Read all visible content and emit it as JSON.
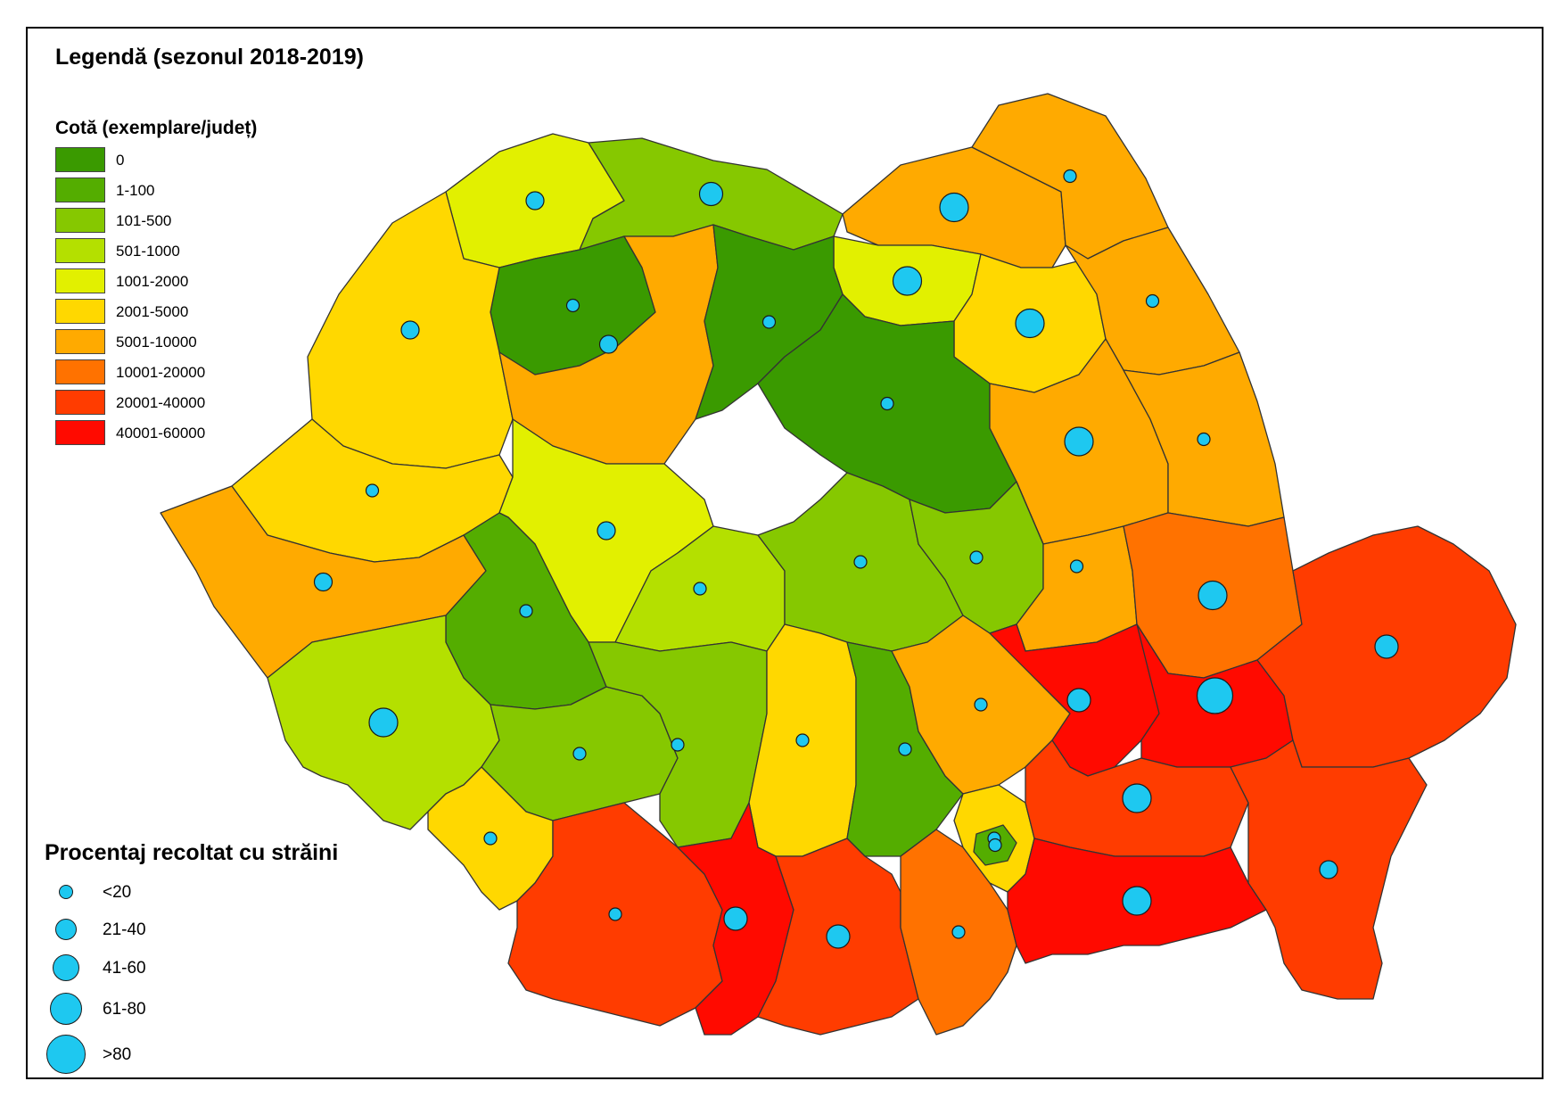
{
  "legend": {
    "title": "Legendă (sezonul 2018-2019)",
    "quota_title": "Cotă (exemplare/județ)",
    "quota_classes": [
      {
        "label": "0",
        "color": "#3a9a00"
      },
      {
        "label": "1-100",
        "color": "#54ad00"
      },
      {
        "label": "101-500",
        "color": "#86c800"
      },
      {
        "label": "501-1000",
        "color": "#b4e000"
      },
      {
        "label": "1001-2000",
        "color": "#e2f000"
      },
      {
        "label": "2001-5000",
        "color": "#ffd800"
      },
      {
        "label": "5001-10000",
        "color": "#ffaa00"
      },
      {
        "label": "10001-20000",
        "color": "#ff7200"
      },
      {
        "label": "20001-40000",
        "color": "#ff3c00"
      },
      {
        "label": "40001-60000",
        "color": "#ff0a00"
      }
    ],
    "pct_title": "Procentaj recoltat cu străini",
    "pct_classes": [
      {
        "label": "<20"
      },
      {
        "label": "21-40"
      },
      {
        "label": "41-60"
      },
      {
        "label": "61-80"
      },
      {
        "label": ">80"
      }
    ]
  },
  "map": {
    "counties": [
      {
        "id": "SM",
        "quota_class": 4,
        "pct_class": 1
      },
      {
        "id": "MM",
        "quota_class": 2,
        "pct_class": 2
      },
      {
        "id": "SV",
        "quota_class": 6,
        "pct_class": 3
      },
      {
        "id": "BN",
        "quota_class": 4,
        "pct_class": 3
      },
      {
        "id": "SJ",
        "quota_class": 0,
        "pct_class": 0
      },
      {
        "id": "CJ",
        "quota_class": 6,
        "pct_class": 1
      },
      {
        "id": "BH",
        "quota_class": 5,
        "pct_class": 1
      },
      {
        "id": "MS",
        "quota_class": 0,
        "pct_class": 0
      },
      {
        "id": "HR",
        "quota_class": 0,
        "pct_class": 0
      },
      {
        "id": "NT",
        "quota_class": 5,
        "pct_class": 3
      },
      {
        "id": "BT",
        "quota_class": 6,
        "pct_class": 0
      },
      {
        "id": "IS",
        "quota_class": 6,
        "pct_class": 0
      },
      {
        "id": "BC",
        "quota_class": 6,
        "pct_class": 3
      },
      {
        "id": "VS",
        "quota_class": 6,
        "pct_class": 0
      },
      {
        "id": "AR",
        "quota_class": 5,
        "pct_class": 0
      },
      {
        "id": "AB",
        "quota_class": 4,
        "pct_class": 1
      },
      {
        "id": "TM",
        "quota_class": 6,
        "pct_class": 1
      },
      {
        "id": "HD",
        "quota_class": 1,
        "pct_class": 0
      },
      {
        "id": "SB",
        "quota_class": 3,
        "pct_class": 0
      },
      {
        "id": "BV",
        "quota_class": 2,
        "pct_class": 0
      },
      {
        "id": "CV",
        "quota_class": 2,
        "pct_class": 0
      },
      {
        "id": "VN",
        "quota_class": 6,
        "pct_class": 0
      },
      {
        "id": "GL",
        "quota_class": 7,
        "pct_class": 3
      },
      {
        "id": "CS",
        "quota_class": 3,
        "pct_class": 3
      },
      {
        "id": "GJ",
        "quota_class": 2,
        "pct_class": 0
      },
      {
        "id": "VL",
        "quota_class": 2,
        "pct_class": 0
      },
      {
        "id": "AG",
        "quota_class": 5,
        "pct_class": 0
      },
      {
        "id": "DB",
        "quota_class": 1,
        "pct_class": 0
      },
      {
        "id": "PH",
        "quota_class": 6,
        "pct_class": 0
      },
      {
        "id": "BZ",
        "quota_class": 9,
        "pct_class": 2
      },
      {
        "id": "BR",
        "quota_class": 9,
        "pct_class": 4
      },
      {
        "id": "TL",
        "quota_class": 8,
        "pct_class": 2
      },
      {
        "id": "MH",
        "quota_class": 5,
        "pct_class": 0
      },
      {
        "id": "DJ",
        "quota_class": 8,
        "pct_class": 0
      },
      {
        "id": "OT",
        "quota_class": 9,
        "pct_class": 2
      },
      {
        "id": "TR",
        "quota_class": 8,
        "pct_class": 2
      },
      {
        "id": "GR",
        "quota_class": 7,
        "pct_class": 0
      },
      {
        "id": "IF",
        "quota_class": 5,
        "pct_class": 0
      },
      {
        "id": "B",
        "quota_class": 1,
        "pct_class": 0
      },
      {
        "id": "IL",
        "quota_class": 8,
        "pct_class": 3
      },
      {
        "id": "CL",
        "quota_class": 9,
        "pct_class": 3
      },
      {
        "id": "CT",
        "quota_class": 8,
        "pct_class": 1
      }
    ]
  }
}
